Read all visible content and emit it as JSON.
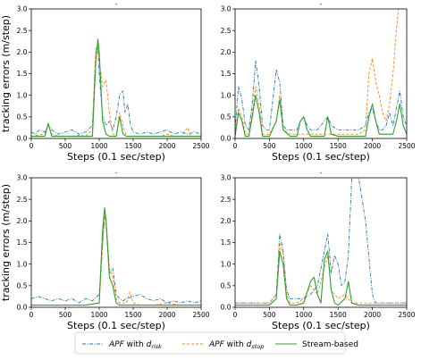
{
  "chart_data": [
    {
      "type": "line",
      "title": "-",
      "xlabel": "Steps (0.1 sec/step)",
      "ylabel": "tracking errors (m/step)",
      "xlim": [
        0,
        2500
      ],
      "ylim": [
        0,
        3.0
      ],
      "xticks": [
        "0",
        "500",
        "1000",
        "1500",
        "2000",
        "2500"
      ],
      "yticks": [
        "0.0",
        "0.5",
        "1.0",
        "1.5",
        "2.0",
        "2.5",
        "3.0"
      ],
      "grid": false,
      "series": [
        {
          "name": "APF with d_risk",
          "x": [
            0,
            60,
            120,
            200,
            250,
            300,
            400,
            500,
            600,
            700,
            800,
            900,
            950,
            980,
            1000,
            1050,
            1100,
            1150,
            1200,
            1250,
            1300,
            1350,
            1380,
            1420,
            1460,
            1500,
            1600,
            1700,
            1800,
            1900,
            2000,
            2100,
            2200,
            2300,
            2400,
            2500
          ],
          "y": [
            0.15,
            0.1,
            0.2,
            0.15,
            0.3,
            0.2,
            0.1,
            0.15,
            0.2,
            0.1,
            0.15,
            0.3,
            2.0,
            2.1,
            1.5,
            0.5,
            0.3,
            0.4,
            0.2,
            0.5,
            1.0,
            1.1,
            0.6,
            0.8,
            0.3,
            0.15,
            0.1,
            0.15,
            0.1,
            0.15,
            0.2,
            0.1,
            0.15,
            0.1,
            0.15,
            0.1
          ]
        },
        {
          "name": "APF with d_stop",
          "x": [
            0,
            100,
            200,
            250,
            300,
            400,
            500,
            600,
            700,
            800,
            900,
            950,
            980,
            1000,
            1050,
            1100,
            1150,
            1200,
            1250,
            1300,
            1350,
            1400,
            1500,
            1600,
            1700,
            1800,
            1900,
            2000,
            2100,
            2200,
            2300,
            2350,
            2400,
            2500
          ],
          "y": [
            0.05,
            0.08,
            0.1,
            0.3,
            0.1,
            0.05,
            0.05,
            0.05,
            0.08,
            0.05,
            0.2,
            2.1,
            2.15,
            1.8,
            1.2,
            1.35,
            0.6,
            0.1,
            0.05,
            0.6,
            0.3,
            0.05,
            0.05,
            0.05,
            0.05,
            0.05,
            0.05,
            0.1,
            0.05,
            0.05,
            0.25,
            0.05,
            0.05,
            0.05
          ]
        },
        {
          "name": "Stream-based",
          "x": [
            0,
            100,
            200,
            250,
            300,
            400,
            500,
            600,
            700,
            800,
            900,
            950,
            980,
            1000,
            1050,
            1100,
            1150,
            1200,
            1250,
            1300,
            1350,
            1400,
            1500,
            1600,
            1700,
            1800,
            1900,
            2000,
            2100,
            2200,
            2300,
            2400,
            2500
          ],
          "y": [
            0.05,
            0.05,
            0.05,
            0.35,
            0.05,
            0.05,
            0.05,
            0.05,
            0.05,
            0.05,
            0.05,
            1.8,
            2.3,
            2.0,
            0.4,
            0.1,
            0.05,
            0.05,
            0.05,
            0.5,
            0.1,
            0.05,
            0.05,
            0.05,
            0.05,
            0.05,
            0.05,
            0.05,
            0.05,
            0.05,
            0.05,
            0.05,
            0.05
          ]
        }
      ]
    },
    {
      "type": "line",
      "title": "-",
      "xlabel": "Steps (0.1 sec/step)",
      "ylabel": "",
      "xlim": [
        0,
        2500
      ],
      "ylim": [
        0,
        3.0
      ],
      "xticks": [
        "0",
        "500",
        "1000",
        "1500",
        "2000",
        "2500"
      ],
      "yticks": [
        "0.0",
        "0.5",
        "1.0",
        "1.5",
        "2.0",
        "2.5",
        "3.0"
      ],
      "grid": false,
      "series": [
        {
          "name": "APF with d_risk",
          "x": [
            0,
            50,
            100,
            150,
            200,
            250,
            300,
            350,
            400,
            450,
            500,
            550,
            600,
            650,
            700,
            750,
            800,
            900,
            950,
            1000,
            1050,
            1100,
            1200,
            1300,
            1350,
            1400,
            1500,
            1600,
            1700,
            1800,
            1900,
            1950,
            2000,
            2050,
            2100,
            2150,
            2200,
            2250,
            2300,
            2350,
            2400,
            2450,
            2500
          ],
          "y": [
            0.2,
            1.2,
            0.9,
            0.3,
            0.2,
            0.8,
            1.8,
            1.2,
            0.3,
            0.2,
            0.2,
            0.9,
            1.6,
            1.3,
            0.3,
            0.2,
            0.2,
            0.2,
            0.4,
            0.5,
            0.3,
            0.2,
            0.2,
            0.4,
            0.5,
            0.3,
            0.2,
            0.2,
            0.2,
            0.2,
            0.3,
            0.6,
            0.7,
            0.4,
            0.2,
            0.2,
            0.3,
            0.6,
            0.3,
            0.7,
            1.1,
            0.5,
            0.3
          ]
        },
        {
          "name": "APF with d_stop",
          "x": [
            0,
            50,
            100,
            150,
            200,
            250,
            300,
            350,
            400,
            500,
            600,
            650,
            700,
            800,
            900,
            1000,
            1100,
            1200,
            1300,
            1400,
            1500,
            1600,
            1700,
            1800,
            1900,
            1950,
            2000,
            2050,
            2100,
            2150,
            2200,
            2250,
            2300,
            2350,
            2380,
            2500
          ],
          "y": [
            0.1,
            0.7,
            0.5,
            0.1,
            0.1,
            0.6,
            1.2,
            0.8,
            0.1,
            0.1,
            0.4,
            1.0,
            0.2,
            0.1,
            0.1,
            0.1,
            0.1,
            0.1,
            0.1,
            0.1,
            0.1,
            0.1,
            0.1,
            0.1,
            0.2,
            1.5,
            1.85,
            1.3,
            1.0,
            0.6,
            0.4,
            0.8,
            1.5,
            2.5,
            3.0,
            3.0
          ]
        },
        {
          "name": "Stream-based",
          "x": [
            0,
            50,
            100,
            150,
            200,
            250,
            300,
            350,
            400,
            500,
            600,
            650,
            700,
            800,
            900,
            950,
            1000,
            1050,
            1100,
            1200,
            1300,
            1350,
            1400,
            1500,
            1600,
            1700,
            1800,
            1900,
            1950,
            2000,
            2050,
            2100,
            2200,
            2300,
            2350,
            2400,
            2450,
            2500
          ],
          "y": [
            0.05,
            0.6,
            0.4,
            0.05,
            0.05,
            0.5,
            1.0,
            0.6,
            0.05,
            0.05,
            0.4,
            0.9,
            0.2,
            0.05,
            0.05,
            0.4,
            0.5,
            0.2,
            0.05,
            0.05,
            0.05,
            0.5,
            0.1,
            0.05,
            0.05,
            0.05,
            0.05,
            0.05,
            0.5,
            0.8,
            0.4,
            0.1,
            0.1,
            0.1,
            0.4,
            0.8,
            0.3,
            0.1
          ]
        }
      ]
    },
    {
      "type": "line",
      "title": "-",
      "xlabel": "Steps (0.1 sec/step)",
      "ylabel": "tracking errors (m/step)",
      "xlim": [
        0,
        2500
      ],
      "ylim": [
        0,
        3.0
      ],
      "xticks": [
        "0",
        "500",
        "1000",
        "1500",
        "2000",
        "2500"
      ],
      "yticks": [
        "0.0",
        "0.5",
        "1.0",
        "1.5",
        "2.0",
        "2.5",
        "3.0"
      ],
      "grid": false,
      "series": [
        {
          "name": "APF with d_risk",
          "x": [
            0,
            100,
            200,
            300,
            400,
            500,
            600,
            700,
            800,
            900,
            1000,
            1050,
            1080,
            1100,
            1150,
            1200,
            1250,
            1300,
            1350,
            1400,
            1500,
            1600,
            1700,
            1800,
            1900,
            2000,
            2100,
            2200,
            2300,
            2400,
            2500
          ],
          "y": [
            0.2,
            0.25,
            0.2,
            0.15,
            0.2,
            0.15,
            0.2,
            0.1,
            0.2,
            0.15,
            0.3,
            1.5,
            2.1,
            2.0,
            0.8,
            0.9,
            0.3,
            0.2,
            0.15,
            0.2,
            0.25,
            0.3,
            0.2,
            0.15,
            0.2,
            0.1,
            0.15,
            0.1,
            0.15,
            0.1,
            0.15
          ]
        },
        {
          "name": "APF with d_stop",
          "x": [
            0,
            200,
            400,
            600,
            800,
            1000,
            1050,
            1080,
            1100,
            1150,
            1200,
            1250,
            1300,
            1400,
            1450,
            1500,
            1600,
            1800,
            2000,
            2200,
            2400,
            2500
          ],
          "y": [
            0.05,
            0.05,
            0.05,
            0.05,
            0.05,
            0.1,
            1.4,
            2.2,
            2.1,
            0.9,
            0.7,
            0.2,
            0.1,
            0.1,
            0.35,
            0.1,
            0.05,
            0.05,
            0.1,
            0.05,
            0.05,
            0.05
          ]
        },
        {
          "name": "Stream-based",
          "x": [
            0,
            200,
            400,
            600,
            800,
            1000,
            1050,
            1080,
            1100,
            1150,
            1200,
            1250,
            1300,
            1400,
            1600,
            1800,
            2000,
            2200,
            2400,
            2500
          ],
          "y": [
            0.05,
            0.05,
            0.05,
            0.05,
            0.05,
            0.1,
            1.8,
            2.3,
            2.0,
            0.7,
            0.5,
            0.1,
            0.05,
            0.05,
            0.05,
            0.05,
            0.05,
            0.05,
            0.05,
            0.05
          ]
        }
      ]
    },
    {
      "type": "line",
      "title": "-",
      "xlabel": "Steps (0.1 sec/step)",
      "ylabel": "",
      "xlim": [
        0,
        2500
      ],
      "ylim": [
        0,
        3.0
      ],
      "xticks": [
        "0",
        "500",
        "1000",
        "1500",
        "2000",
        "2500"
      ],
      "yticks": [
        "0.0",
        "0.5",
        "1.0",
        "1.5",
        "2.0",
        "2.5",
        "3.0"
      ],
      "grid": false,
      "series": [
        {
          "name": "APF with d_risk",
          "x": [
            0,
            200,
            400,
            500,
            600,
            650,
            700,
            750,
            800,
            900,
            1000,
            1100,
            1200,
            1300,
            1350,
            1400,
            1450,
            1500,
            1550,
            1600,
            1650,
            1700,
            1750,
            1800,
            1900,
            2000,
            2050,
            2100,
            2200,
            2300,
            2400,
            2500
          ],
          "y": [
            0.1,
            0.1,
            0.1,
            0.1,
            0.3,
            1.7,
            1.3,
            0.4,
            0.2,
            0.2,
            0.2,
            0.3,
            0.5,
            1.3,
            1.7,
            0.8,
            1.2,
            1.0,
            0.5,
            0.6,
            1.2,
            3.0,
            3.0,
            3.0,
            2.0,
            0.3,
            0.1,
            0.1,
            0.1,
            0.1,
            0.1,
            0.1
          ]
        },
        {
          "name": "APF with d_stop",
          "x": [
            0,
            200,
            400,
            500,
            600,
            650,
            700,
            750,
            800,
            900,
            1000,
            1100,
            1200,
            1300,
            1350,
            1400,
            1500,
            1600,
            1700,
            1800,
            1900,
            2000,
            2100,
            2200,
            2300,
            2400,
            2500
          ],
          "y": [
            0.1,
            0.1,
            0.1,
            0.1,
            0.3,
            1.5,
            1.2,
            0.3,
            0.1,
            0.1,
            0.2,
            0.5,
            0.3,
            0.9,
            1.2,
            0.4,
            0.2,
            0.3,
            0.1,
            0.1,
            0.1,
            0.1,
            0.1,
            0.1,
            0.1,
            0.1,
            0.1
          ]
        },
        {
          "name": "Stream-based",
          "x": [
            0,
            200,
            400,
            500,
            600,
            650,
            700,
            750,
            800,
            900,
            1000,
            1100,
            1150,
            1200,
            1250,
            1300,
            1350,
            1400,
            1450,
            1500,
            1600,
            1650,
            1700,
            1800,
            1900,
            2000,
            2100,
            2200,
            2300,
            2400,
            2500
          ],
          "y": [
            0.05,
            0.05,
            0.05,
            0.05,
            0.2,
            1.3,
            1.0,
            0.2,
            0.05,
            0.05,
            0.1,
            0.6,
            0.7,
            0.3,
            0.1,
            1.1,
            1.3,
            0.4,
            0.1,
            0.05,
            0.2,
            0.6,
            0.1,
            0.05,
            0.05,
            0.05,
            0.05,
            0.05,
            0.05,
            0.05,
            0.05
          ]
        }
      ]
    }
  ],
  "legend": {
    "placement": "bottom-center",
    "entries": [
      {
        "prefix": "APF",
        "mid": " with ",
        "var": "d",
        "sub": "risk",
        "color": "#1f77b4",
        "dash": "dashdot"
      },
      {
        "prefix": "APF",
        "mid": " with ",
        "var": "d",
        "sub": "stop",
        "color": "#ff7f0e",
        "dash": "dashed"
      },
      {
        "prefix": "",
        "mid": "Stream-based",
        "var": "",
        "sub": "",
        "color": "#2ca02c",
        "dash": "solid"
      }
    ]
  },
  "colors": {
    "d_risk": "#1f77b4",
    "d_stop": "#ff7f0e",
    "stream": "#2ca02c"
  }
}
